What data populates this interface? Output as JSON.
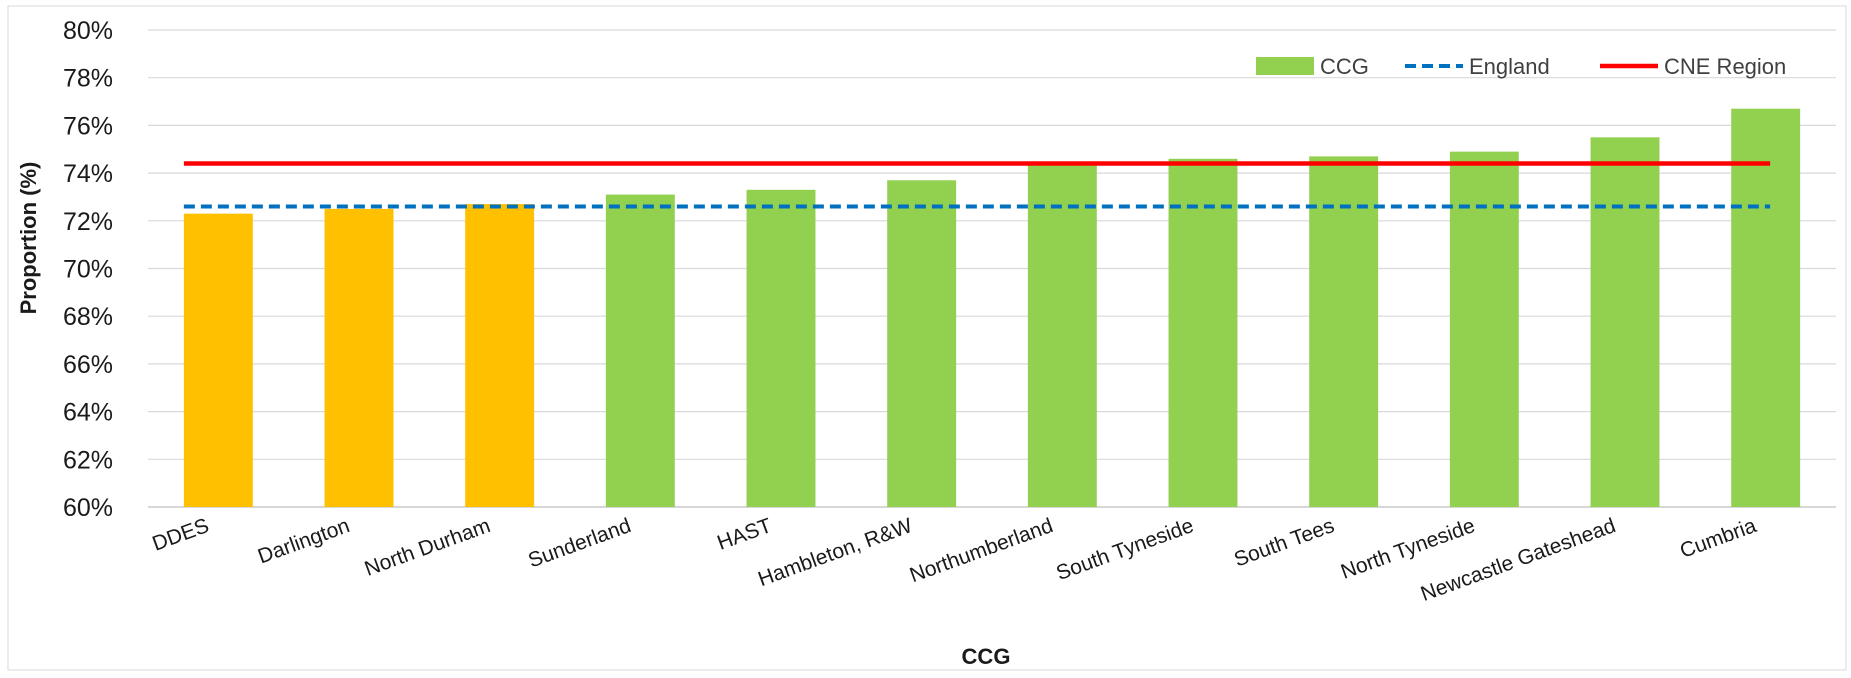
{
  "chart_data": {
    "type": "bar",
    "xlabel": "CCG",
    "ylabel": "Proportion (%)",
    "ylim": [
      60,
      80
    ],
    "y_ticks": [
      "60%",
      "62%",
      "64%",
      "66%",
      "68%",
      "70%",
      "72%",
      "74%",
      "76%",
      "78%",
      "80%"
    ],
    "grid": true,
    "legend_position": "top-right",
    "categories": [
      "DDES",
      "Darlington",
      "North Durham",
      "Sunderland",
      "HAST",
      "Hambleton, R&W",
      "Northumberland",
      "South Tyneside",
      "South Tees",
      "North Tyneside",
      "Newcastle Gateshead",
      "Cumbria"
    ],
    "series": [
      {
        "name": "CCG",
        "values": [
          72.3,
          72.5,
          72.7,
          73.1,
          73.3,
          73.7,
          74.4,
          74.6,
          74.7,
          74.9,
          75.5,
          76.7
        ],
        "bar_colors": [
          "#ffc000",
          "#ffc000",
          "#ffc000",
          "#92d050",
          "#92d050",
          "#92d050",
          "#92d050",
          "#92d050",
          "#92d050",
          "#92d050",
          "#92d050",
          "#92d050"
        ]
      }
    ],
    "reference_lines": [
      {
        "name": "England",
        "value": 72.6,
        "color": "#0070c0",
        "style": "dashed"
      },
      {
        "name": "CNE Region",
        "value": 74.4,
        "color": "#ff0000",
        "style": "solid"
      }
    ],
    "legend": [
      {
        "label": "CCG",
        "color": "#92d050",
        "kind": "bar"
      },
      {
        "label": "England",
        "color": "#0070c0",
        "kind": "dashed-line"
      },
      {
        "label": "CNE Region",
        "color": "#ff0000",
        "kind": "line"
      }
    ]
  }
}
